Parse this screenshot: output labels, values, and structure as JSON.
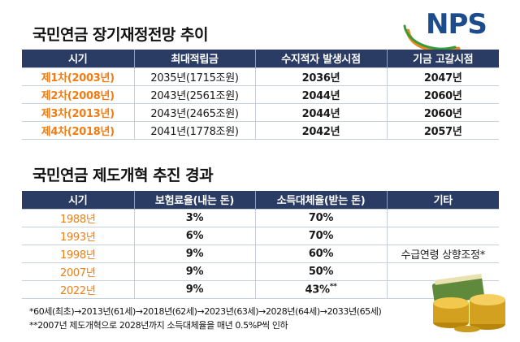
{
  "title1": "국민연금 장기재정전망 추이",
  "title2": "국민연금 제도개혁 추진 경과",
  "logo": "NPS",
  "table1": {
    "headers": [
      "시기",
      "최대적립금",
      "수지적자 발생시점",
      "기금 고갈시점"
    ],
    "rows": [
      [
        "제1차(2003년)",
        "2035년(1715조원)",
        "2036년",
        "2047년"
      ],
      [
        "제2차(2008년)",
        "2043년(2561조원)",
        "2044년",
        "2060년"
      ],
      [
        "제3차(2013년)",
        "2043년(2465조원)",
        "2044년",
        "2060년"
      ],
      [
        "제4차(2018년)",
        "2041년(1778조원)",
        "2042년",
        "2057년"
      ]
    ]
  },
  "table2": {
    "headers": [
      "시기",
      "보험료율(내는 돈)",
      "소득대체율(받는 돈)",
      "기타"
    ],
    "rows": [
      [
        "1988년",
        "3%",
        "70%",
        ""
      ],
      [
        "1993년",
        "6%",
        "70%",
        ""
      ],
      [
        "1998년",
        "9%",
        "60%",
        "수급연령 상향조정*"
      ],
      [
        "2007년",
        "9%",
        "50%",
        ""
      ],
      [
        "2022년",
        "9%",
        "43%",
        ""
      ]
    ],
    "footnote_mark": "**"
  },
  "notes": [
    "*60세(최초)→2013년(61세)→2018년(62세)→2023년(63세)→2028년(64세)→2033년(65세)",
    "**2007년 제도개혁으로 2028년까지 소득대체율을 매년 0.5%P씩 인하"
  ],
  "colors": {
    "header_bg": "#2a3b64",
    "accent_orange": "#f07d14",
    "logo_blue": "#1d4c8c"
  }
}
